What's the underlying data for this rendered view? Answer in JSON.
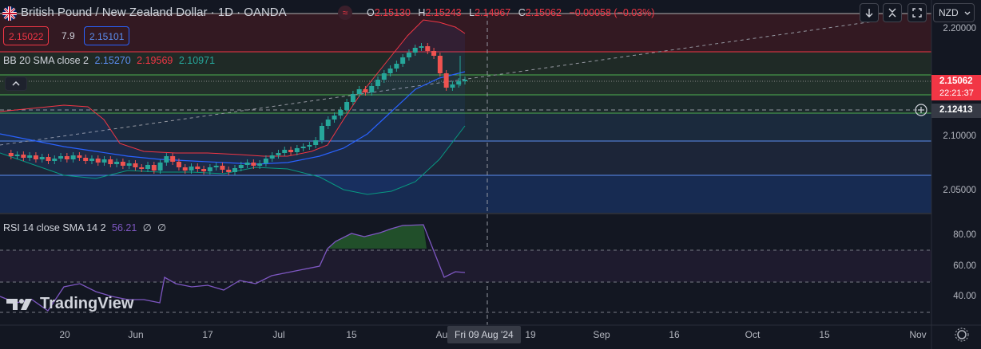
{
  "header": {
    "title": "British Pound / New Zealand Dollar · 1D · OANDA",
    "ohlc": {
      "o_label": "O",
      "o": "2.15130",
      "h_label": "H",
      "h": "2.15243",
      "l_label": "L",
      "l": "2.14967",
      "c_label": "C",
      "c": "2.15062",
      "change": "−0.00058 (−0.03%)"
    },
    "sell_price": "2.15022",
    "spread": "7.9",
    "buy_price": "2.15101"
  },
  "currency_button": "NZD",
  "bb_legend": {
    "label": "BB 20 SMA close 2",
    "basis": "2.15270",
    "upper": "2.19569",
    "lower": "2.10971"
  },
  "rsi_legend": {
    "label": "RSI 14 close SMA 14 2",
    "value": "56.21",
    "v2": "∅",
    "v3": "∅"
  },
  "price_axis": [
    "2.20000",
    "2.10000",
    "2.05000"
  ],
  "rsi_axis": [
    "80.00",
    "60.00",
    "40.00"
  ],
  "price_tags": {
    "last": "2.15062",
    "countdown": "22:21:37",
    "crosshair": "2.12413"
  },
  "x_axis": [
    "20",
    "Jun",
    "17",
    "Jul",
    "15",
    "Au",
    "19",
    "Sep",
    "16",
    "Oct",
    "15",
    "Nov"
  ],
  "x_crosshair": "Fri 09 Aug '24",
  "logo_text": "TradingView",
  "colors": {
    "up": "#26a69a",
    "down": "#ef5350",
    "bb_upper": "#f23645",
    "bb_basis": "#2962ff",
    "bb_lower": "#089981",
    "rsi": "#7e57c2",
    "background": "#131722"
  }
}
